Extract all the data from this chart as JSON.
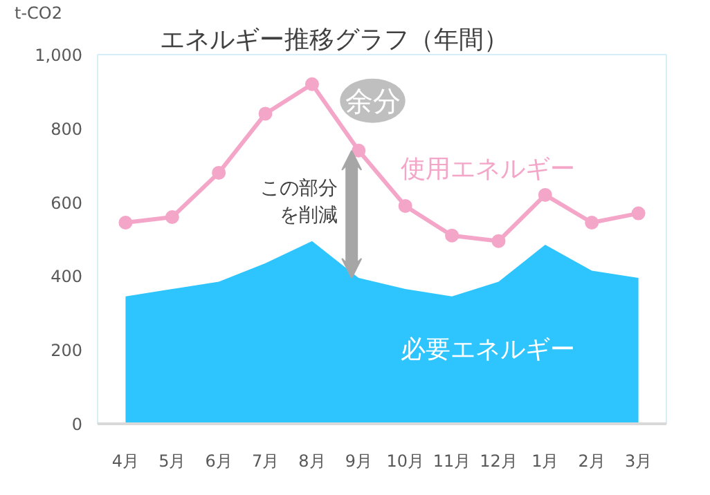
{
  "chart_data": {
    "type": "area",
    "title": "エネルギー推移グラフ（年間）",
    "ylabel": "t-CO2",
    "categories": [
      "4月",
      "5月",
      "6月",
      "7月",
      "8月",
      "9月",
      "10月",
      "11月",
      "12月",
      "1月",
      "2月",
      "3月"
    ],
    "series": [
      {
        "name": "必要エネルギー",
        "color": "#2ec4fd",
        "values": [
          345,
          365,
          385,
          435,
          495,
          395,
          365,
          345,
          385,
          485,
          415,
          395
        ]
      },
      {
        "name": "使用エネルギー",
        "type": "line",
        "marker": "circle",
        "color": "#f4a6c8",
        "values": [
          545,
          560,
          680,
          840,
          920,
          740,
          590,
          510,
          495,
          620,
          545,
          570
        ]
      }
    ],
    "annotations": [
      "余分",
      "この部分を削減"
    ],
    "ylim": [
      0,
      1000
    ],
    "yticks": [
      0,
      200,
      400,
      600,
      800,
      {
        "value": 1000,
        "label": "1,000"
      }
    ],
    "grid": false
  }
}
